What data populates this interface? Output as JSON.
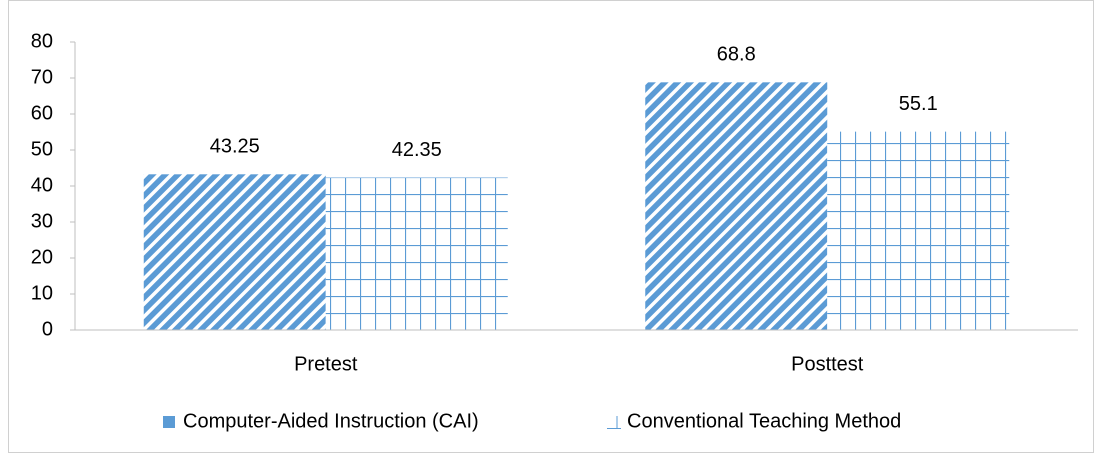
{
  "chart_data": {
    "type": "bar",
    "categories": [
      "Pretest",
      "Posttest"
    ],
    "series": [
      {
        "name": "Computer-Aided Instruction (CAI)",
        "color": "#5b9bd5",
        "pattern": "diagonal",
        "values": [
          43.25,
          68.8
        ]
      },
      {
        "name": "Conventional Teaching Method",
        "color": "#5b9bd5",
        "pattern": "grid",
        "values": [
          42.35,
          55.1
        ]
      }
    ],
    "ylim": [
      0,
      80
    ],
    "yticks": [
      0,
      10,
      20,
      30,
      40,
      50,
      60,
      70,
      80
    ],
    "grid": false,
    "legend": "bottom",
    "data_labels": true
  }
}
